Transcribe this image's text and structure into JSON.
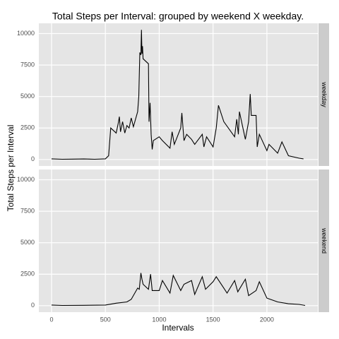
{
  "chart_data": {
    "type": "line",
    "title": "Total Steps per Interval: grouped by weekend X weekday.",
    "xlabel": "Intervals",
    "ylabel": "Total Steps per Interval",
    "xlim": [
      -118,
      2473
    ],
    "xticks": [
      0,
      500,
      1000,
      1500,
      2000
    ],
    "ylim": [
      -515,
      10815
    ],
    "yticks": [
      0,
      2500,
      5000,
      7500,
      10000
    ],
    "grid": true,
    "series": [
      {
        "name": "weekday",
        "color": "#000000",
        "x": [
          0,
          100,
          200,
          300,
          400,
          500,
          530,
          550,
          600,
          620,
          630,
          640,
          660,
          680,
          700,
          720,
          740,
          760,
          800,
          810,
          820,
          830,
          835,
          840,
          845,
          850,
          900,
          905,
          915,
          925,
          935,
          945,
          1000,
          1030,
          1100,
          1120,
          1140,
          1200,
          1210,
          1230,
          1255,
          1300,
          1330,
          1400,
          1415,
          1440,
          1500,
          1530,
          1550,
          1600,
          1700,
          1720,
          1735,
          1745,
          1800,
          1830,
          1845,
          1855,
          1900,
          1910,
          1930,
          2000,
          2020,
          2100,
          2140,
          2200,
          2300,
          2340
        ],
        "values": [
          50,
          20,
          30,
          40,
          20,
          50,
          300,
          2500,
          2100,
          2900,
          3400,
          2200,
          3000,
          2100,
          2700,
          2500,
          3300,
          2600,
          3800,
          5000,
          8500,
          8300,
          10300,
          8400,
          9000,
          8000,
          7600,
          3000,
          4500,
          2000,
          800,
          1500,
          1800,
          1500,
          900,
          2200,
          1200,
          2500,
          3700,
          1500,
          2000,
          1600,
          1200,
          2000,
          1000,
          1800,
          1000,
          2500,
          4300,
          3000,
          1800,
          3200,
          2000,
          3800,
          1600,
          3000,
          5200,
          3500,
          3500,
          1000,
          2000,
          700,
          1200,
          500,
          1400,
          300,
          100,
          50
        ]
      },
      {
        "name": "weekend",
        "color": "#000000",
        "x": [
          0,
          100,
          300,
          500,
          600,
          700,
          740,
          800,
          815,
          830,
          840,
          850,
          900,
          920,
          935,
          1000,
          1030,
          1100,
          1130,
          1200,
          1230,
          1300,
          1330,
          1400,
          1430,
          1500,
          1530,
          1600,
          1630,
          1700,
          1730,
          1800,
          1830,
          1900,
          1930,
          2000,
          2100,
          2200,
          2300,
          2355
        ],
        "values": [
          50,
          20,
          30,
          50,
          200,
          300,
          500,
          1400,
          1300,
          2600,
          2100,
          1700,
          1300,
          2500,
          1200,
          1200,
          2000,
          1000,
          2400,
          1200,
          1700,
          2000,
          900,
          2300,
          1300,
          1900,
          2300,
          1400,
          1000,
          2000,
          1100,
          2100,
          800,
          1200,
          1900,
          600,
          300,
          150,
          100,
          20
        ]
      }
    ]
  }
}
